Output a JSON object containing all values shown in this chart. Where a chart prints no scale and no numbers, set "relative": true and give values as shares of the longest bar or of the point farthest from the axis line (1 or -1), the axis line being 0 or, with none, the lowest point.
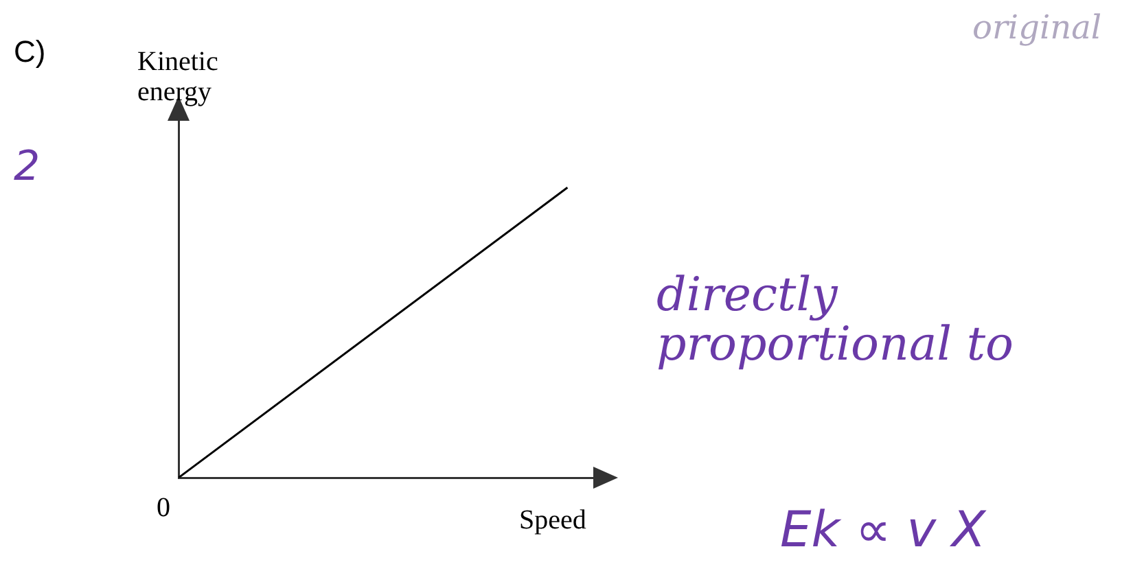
{
  "chart_data": {
    "type": "line",
    "relative": true,
    "categories": [
      null,
      null
    ],
    "values": [
      0,
      1
    ],
    "color": "#000000",
    "marker": "none",
    "tick_labels": false,
    "xlabel": "Speed",
    "ylabel": "Kinetic energy",
    "annotations": [
      "C)",
      "0",
      "2",
      "original",
      "directly proportional to",
      "Ek ∝ v X"
    ]
  }
}
